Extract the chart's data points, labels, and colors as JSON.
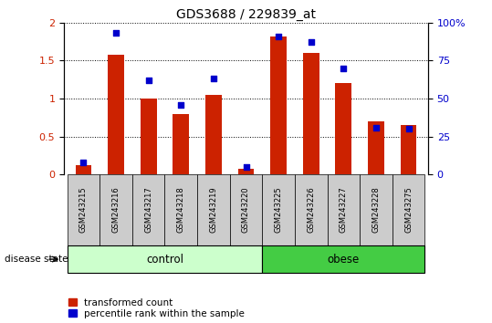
{
  "title": "GDS3688 / 229839_at",
  "samples": [
    "GSM243215",
    "GSM243216",
    "GSM243217",
    "GSM243218",
    "GSM243219",
    "GSM243220",
    "GSM243225",
    "GSM243226",
    "GSM243227",
    "GSM243228",
    "GSM243275"
  ],
  "transformed_count": [
    0.12,
    1.58,
    1.0,
    0.8,
    1.05,
    0.07,
    1.82,
    1.6,
    1.2,
    0.7,
    0.65
  ],
  "percentile_rank": [
    8,
    93,
    62,
    46,
    63,
    5,
    91,
    87,
    70,
    31,
    30
  ],
  "ylim_left": [
    0,
    2
  ],
  "ylim_right": [
    0,
    100
  ],
  "yticks_left": [
    0,
    0.5,
    1.0,
    1.5,
    2.0
  ],
  "yticks_right": [
    0,
    25,
    50,
    75,
    100
  ],
  "control_count": 6,
  "obese_count": 5,
  "bar_color": "#cc2200",
  "dot_color": "#0000cc",
  "control_bg": "#ccffcc",
  "obese_bg": "#44cc44",
  "sample_bg": "#cccccc",
  "bar_width": 0.5,
  "dot_size": 25,
  "legend_bar_label": "transformed count",
  "legend_dot_label": "percentile rank within the sample",
  "group_label": "disease state",
  "control_label": "control",
  "obese_label": "obese",
  "ytick_labels_left": [
    "0",
    "0.5",
    "1",
    "1.5",
    "2"
  ],
  "ytick_labels_right": [
    "0",
    "25",
    "50",
    "75",
    "100%"
  ]
}
